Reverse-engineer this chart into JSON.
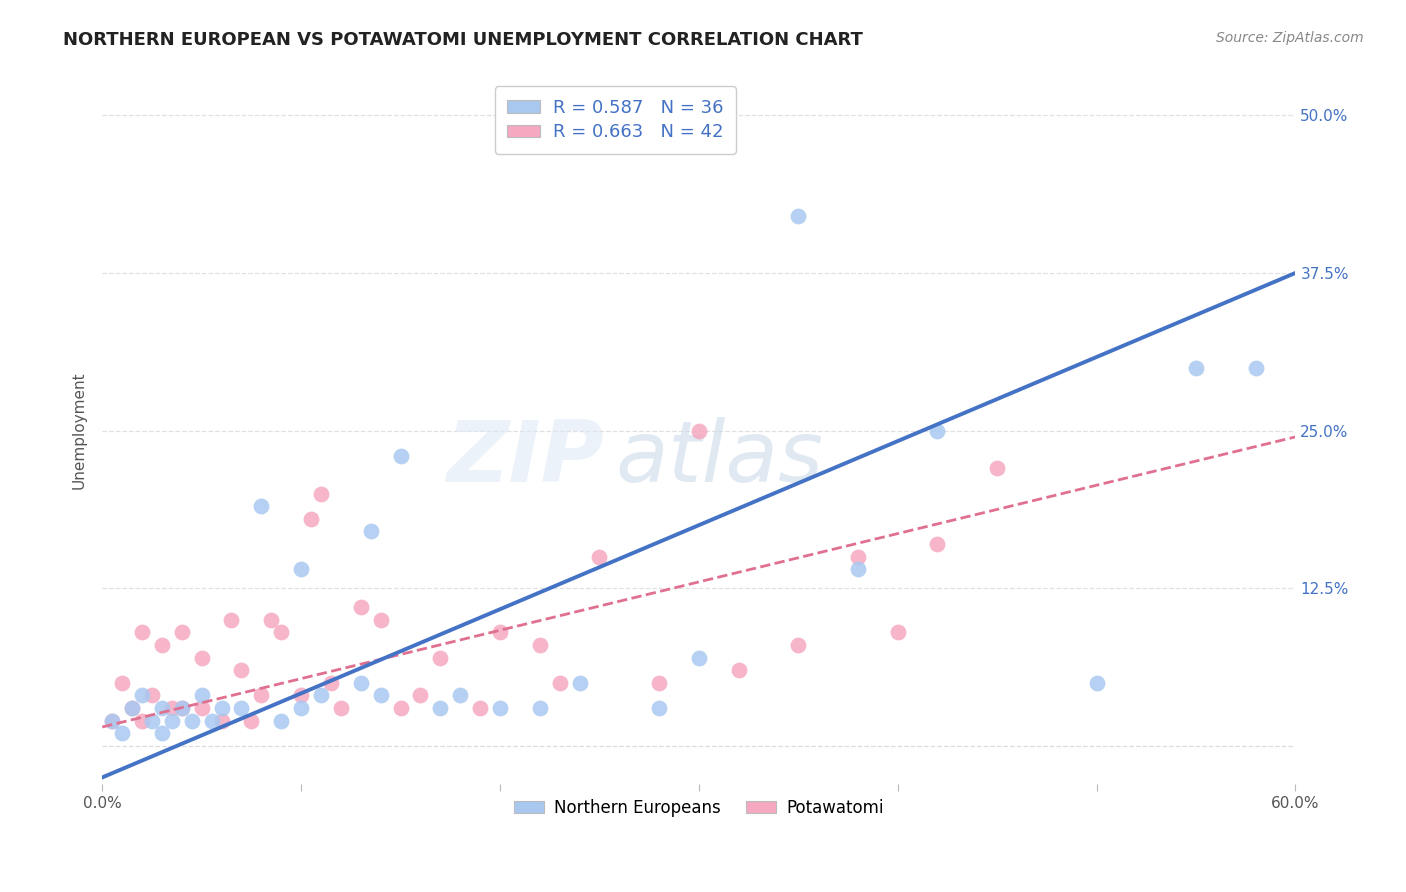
{
  "title": "NORTHERN EUROPEAN VS POTAWATOMI UNEMPLOYMENT CORRELATION CHART",
  "source": "Source: ZipAtlas.com",
  "ylabel": "Unemployment",
  "xlim": [
    0.0,
    0.6
  ],
  "ylim": [
    -0.03,
    0.53
  ],
  "yticks": [
    0.125,
    0.25,
    0.375,
    0.5
  ],
  "ytick_labels": [
    "12.5%",
    "25.0%",
    "37.5%",
    "50.0%"
  ],
  "xticks": [
    0.0,
    0.1,
    0.2,
    0.3,
    0.4,
    0.5,
    0.6
  ],
  "xtick_labels": [
    "0.0%",
    "",
    "",
    "",
    "",
    "",
    "60.0%"
  ],
  "blue_color": "#a8c8f0",
  "pink_color": "#f5a8c0",
  "blue_line_color": "#4472c4",
  "pink_line_color": "#e07090",
  "blue_r": "0.587",
  "blue_n": "36",
  "pink_r": "0.663",
  "pink_n": "42",
  "legend_label_blue": "Northern Europeans",
  "legend_label_pink": "Potawatomi",
  "watermark_zip": "ZIP",
  "watermark_atlas": "atlas",
  "blue_scatter_x": [
    0.005,
    0.01,
    0.015,
    0.02,
    0.025,
    0.03,
    0.03,
    0.035,
    0.04,
    0.045,
    0.05,
    0.055,
    0.06,
    0.07,
    0.08,
    0.09,
    0.1,
    0.1,
    0.11,
    0.13,
    0.135,
    0.14,
    0.15,
    0.17,
    0.18,
    0.2,
    0.22,
    0.24,
    0.28,
    0.3,
    0.35,
    0.38,
    0.42,
    0.5,
    0.55,
    0.58
  ],
  "blue_scatter_y": [
    0.02,
    0.01,
    0.03,
    0.04,
    0.02,
    0.03,
    0.01,
    0.02,
    0.03,
    0.02,
    0.04,
    0.02,
    0.03,
    0.03,
    0.19,
    0.02,
    0.14,
    0.03,
    0.04,
    0.05,
    0.17,
    0.04,
    0.23,
    0.03,
    0.04,
    0.03,
    0.03,
    0.05,
    0.03,
    0.07,
    0.42,
    0.14,
    0.25,
    0.05,
    0.3,
    0.3
  ],
  "pink_scatter_x": [
    0.005,
    0.01,
    0.015,
    0.02,
    0.02,
    0.025,
    0.03,
    0.035,
    0.04,
    0.04,
    0.05,
    0.05,
    0.06,
    0.065,
    0.07,
    0.075,
    0.08,
    0.085,
    0.09,
    0.1,
    0.105,
    0.11,
    0.115,
    0.12,
    0.13,
    0.14,
    0.15,
    0.16,
    0.17,
    0.19,
    0.2,
    0.22,
    0.23,
    0.25,
    0.28,
    0.3,
    0.32,
    0.35,
    0.38,
    0.4,
    0.42,
    0.45
  ],
  "pink_scatter_y": [
    0.02,
    0.05,
    0.03,
    0.09,
    0.02,
    0.04,
    0.08,
    0.03,
    0.09,
    0.03,
    0.07,
    0.03,
    0.02,
    0.1,
    0.06,
    0.02,
    0.04,
    0.1,
    0.09,
    0.04,
    0.18,
    0.2,
    0.05,
    0.03,
    0.11,
    0.1,
    0.03,
    0.04,
    0.07,
    0.03,
    0.09,
    0.08,
    0.05,
    0.15,
    0.05,
    0.25,
    0.06,
    0.08,
    0.15,
    0.09,
    0.16,
    0.22
  ],
  "blue_line_x": [
    0.0,
    0.6
  ],
  "blue_line_y": [
    -0.025,
    0.375
  ],
  "pink_line_x": [
    0.0,
    0.6
  ],
  "pink_line_y": [
    0.015,
    0.245
  ],
  "grid_color": "#dddddd",
  "title_fontsize": 13,
  "axis_label_fontsize": 11,
  "tick_fontsize": 11,
  "source_fontsize": 10
}
